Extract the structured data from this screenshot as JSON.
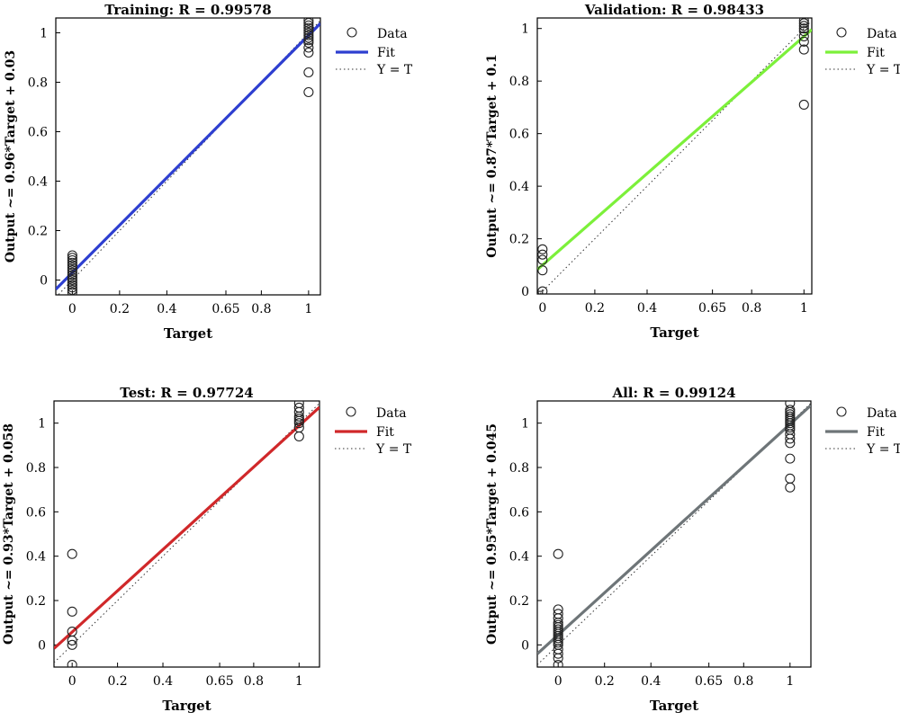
{
  "chart_data": [
    {
      "type": "scatter",
      "title": "Training: R = 0.99578",
      "xlabel": "Target",
      "ylabel": "Output ~= 0.96*Target + 0.03",
      "xlim": [
        -0.07,
        1.05
      ],
      "ylim": [
        -0.06,
        1.06
      ],
      "xticks": [
        0,
        0.2,
        0.4,
        0.65,
        0.8,
        1
      ],
      "xtick_labels": [
        "0",
        "0.2",
        "0.4",
        "0.65",
        "0.8",
        "1"
      ],
      "yticks": [
        0,
        0.2,
        0.4,
        0.6,
        0.8,
        1
      ],
      "ytick_labels": [
        "0",
        "0.2",
        "0.4",
        "0.6",
        "0.8",
        "1"
      ],
      "fit": {
        "slope": 0.96,
        "intercept": 0.03,
        "color": "#2e3fd0"
      },
      "legend": {
        "position": "top-right",
        "items": [
          "Data",
          "Fit",
          "Y = T"
        ]
      },
      "grid": false,
      "points": [
        [
          0,
          -0.05
        ],
        [
          0,
          -0.04
        ],
        [
          0,
          -0.03
        ],
        [
          0,
          -0.02
        ],
        [
          0,
          -0.01
        ],
        [
          0,
          0.0
        ],
        [
          0,
          0.01
        ],
        [
          0,
          0.02
        ],
        [
          0,
          0.03
        ],
        [
          0,
          0.04
        ],
        [
          0,
          0.05
        ],
        [
          0,
          0.06
        ],
        [
          0,
          0.07
        ],
        [
          0,
          0.08
        ],
        [
          0,
          0.09
        ],
        [
          0,
          0.1
        ],
        [
          1,
          0.76
        ],
        [
          1,
          0.84
        ],
        [
          1,
          0.92
        ],
        [
          1,
          0.94
        ],
        [
          1,
          0.96
        ],
        [
          1,
          0.97
        ],
        [
          1,
          0.98
        ],
        [
          1,
          0.99
        ],
        [
          1,
          1.0
        ],
        [
          1,
          1.01
        ],
        [
          1,
          1.02
        ],
        [
          1,
          1.03
        ],
        [
          1,
          1.04
        ],
        [
          1,
          1.05
        ]
      ]
    },
    {
      "type": "scatter",
      "title": "Validation: R = 0.98433",
      "xlabel": "Target",
      "ylabel": "Output ~= 0.87*Target + 0.1",
      "xlim": [
        -0.02,
        1.03
      ],
      "ylim": [
        -0.01,
        1.04
      ],
      "xticks": [
        0,
        0.2,
        0.4,
        0.65,
        0.8,
        1
      ],
      "xtick_labels": [
        "0",
        "0.2",
        "0.4",
        "0.65",
        "0.8",
        "1"
      ],
      "yticks": [
        0,
        0.2,
        0.4,
        0.6,
        0.8,
        1
      ],
      "ytick_labels": [
        "0",
        "0.2",
        "0.4",
        "0.6",
        "0.8",
        "1"
      ],
      "fit": {
        "slope": 0.87,
        "intercept": 0.1,
        "color": "#7cf03a"
      },
      "legend": {
        "position": "top-right",
        "items": [
          "Data",
          "Fit",
          "Y = T"
        ]
      },
      "grid": false,
      "points": [
        [
          0,
          0.0
        ],
        [
          0,
          0.08
        ],
        [
          0,
          0.12
        ],
        [
          0,
          0.14
        ],
        [
          0,
          0.16
        ],
        [
          1,
          0.71
        ],
        [
          1,
          0.92
        ],
        [
          1,
          0.95
        ],
        [
          1,
          0.97
        ],
        [
          1,
          0.99
        ],
        [
          1,
          1.0
        ],
        [
          1,
          1.01
        ],
        [
          1,
          1.02
        ],
        [
          1,
          1.03
        ]
      ]
    },
    {
      "type": "scatter",
      "title": "Test: R = 0.97724",
      "xlabel": "Target",
      "ylabel": "Output ~= 0.93*Target + 0.058",
      "xlim": [
        -0.08,
        1.09
      ],
      "ylim": [
        -0.1,
        1.1
      ],
      "xticks": [
        0,
        0.2,
        0.4,
        0.65,
        0.8,
        1
      ],
      "xtick_labels": [
        "0",
        "0.2",
        "0.4",
        "0.65",
        "0.8",
        "1"
      ],
      "yticks": [
        0,
        0.2,
        0.4,
        0.6,
        0.8,
        1
      ],
      "ytick_labels": [
        "0",
        "0.2",
        "0.4",
        "0.6",
        "0.8",
        "1"
      ],
      "fit": {
        "slope": 0.93,
        "intercept": 0.058,
        "color": "#d0282a"
      },
      "legend": {
        "position": "top-right",
        "items": [
          "Data",
          "Fit",
          "Y = T"
        ]
      },
      "grid": false,
      "points": [
        [
          0,
          -0.09
        ],
        [
          0,
          0.0
        ],
        [
          0,
          0.02
        ],
        [
          0,
          0.06
        ],
        [
          0,
          0.15
        ],
        [
          0,
          0.41
        ],
        [
          1,
          0.94
        ],
        [
          1,
          0.98
        ],
        [
          1,
          1.0
        ],
        [
          1,
          1.01
        ],
        [
          1,
          1.02
        ],
        [
          1,
          1.03
        ],
        [
          1,
          1.05
        ],
        [
          1,
          1.07
        ],
        [
          1,
          1.09
        ]
      ]
    },
    {
      "type": "scatter",
      "title": "All: R = 0.99124",
      "xlabel": "Target",
      "ylabel": "Output ~= 0.95*Target + 0.045",
      "xlim": [
        -0.09,
        1.09
      ],
      "ylim": [
        -0.1,
        1.1
      ],
      "xticks": [
        0,
        0.2,
        0.4,
        0.65,
        0.8,
        1
      ],
      "xtick_labels": [
        "0",
        "0.2",
        "0.4",
        "0.65",
        "0.8",
        "1"
      ],
      "yticks": [
        0,
        0.2,
        0.4,
        0.6,
        0.8,
        1
      ],
      "ytick_labels": [
        "0",
        "0.2",
        "0.4",
        "0.6",
        "0.8",
        "1"
      ],
      "fit": {
        "slope": 0.95,
        "intercept": 0.045,
        "color": "#6e7578"
      },
      "legend": {
        "position": "top-right",
        "items": [
          "Data",
          "Fit",
          "Y = T"
        ]
      },
      "grid": false,
      "points": [
        [
          0,
          -0.09
        ],
        [
          0,
          -0.06
        ],
        [
          0,
          -0.04
        ],
        [
          0,
          -0.02
        ],
        [
          0,
          0.0
        ],
        [
          0,
          0.01
        ],
        [
          0,
          0.02
        ],
        [
          0,
          0.03
        ],
        [
          0,
          0.04
        ],
        [
          0,
          0.05
        ],
        [
          0,
          0.06
        ],
        [
          0,
          0.07
        ],
        [
          0,
          0.08
        ],
        [
          0,
          0.09
        ],
        [
          0,
          0.1
        ],
        [
          0,
          0.12
        ],
        [
          0,
          0.14
        ],
        [
          0,
          0.16
        ],
        [
          0,
          0.41
        ],
        [
          1,
          0.71
        ],
        [
          1,
          0.75
        ],
        [
          1,
          0.84
        ],
        [
          1,
          0.91
        ],
        [
          1,
          0.93
        ],
        [
          1,
          0.95
        ],
        [
          1,
          0.97
        ],
        [
          1,
          0.98
        ],
        [
          1,
          0.99
        ],
        [
          1,
          1.0
        ],
        [
          1,
          1.01
        ],
        [
          1,
          1.02
        ],
        [
          1,
          1.03
        ],
        [
          1,
          1.04
        ],
        [
          1,
          1.05
        ],
        [
          1,
          1.06
        ],
        [
          1,
          1.09
        ]
      ]
    }
  ]
}
